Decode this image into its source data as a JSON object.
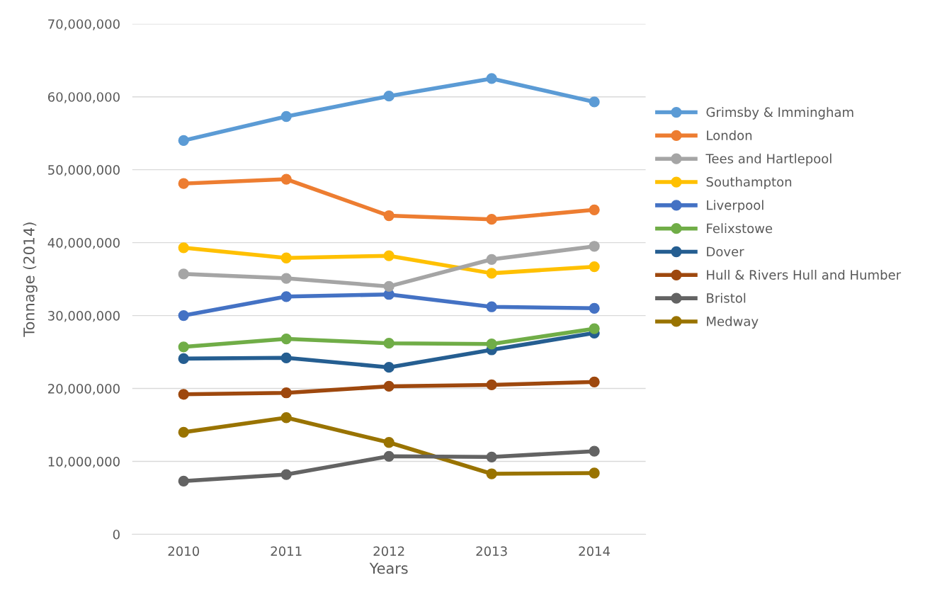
{
  "chart_data": {
    "type": "line",
    "xlabel": "Years",
    "ylabel": "Tonnage (2014)",
    "categories": [
      "2010",
      "2011",
      "2012",
      "2013",
      "2014"
    ],
    "ylim": [
      0,
      70000000
    ],
    "yticks": [
      0,
      {
        "value": 10000000,
        "label": "10,000,000"
      },
      {
        "value": 20000000,
        "label": "20,000,000"
      },
      {
        "value": 30000000,
        "label": "30,000,000"
      },
      {
        "value": 40000000,
        "label": "40,000,000"
      },
      {
        "value": 50000000,
        "label": "50,000,000"
      },
      {
        "value": 60000000,
        "label": "60,000,000"
      },
      {
        "value": 70000000,
        "label": "70,000,000"
      }
    ],
    "grid": "y",
    "legend": "right",
    "marker": "circle",
    "line_style": "solid",
    "series": [
      {
        "name": "Grimsby & Immingham",
        "color": "#5b9bd5",
        "values": [
          54000000,
          57300000,
          60100000,
          62500000,
          59300000
        ]
      },
      {
        "name": "London",
        "color": "#ed7d31",
        "values": [
          48100000,
          48700000,
          43700000,
          43200000,
          44500000
        ]
      },
      {
        "name": "Tees and Hartlepool",
        "color": "#a5a5a5",
        "values": [
          35700000,
          35100000,
          34000000,
          37700000,
          39500000
        ]
      },
      {
        "name": "Southampton",
        "color": "#ffc000",
        "values": [
          39300000,
          37900000,
          38200000,
          35800000,
          36700000
        ]
      },
      {
        "name": "Liverpool",
        "color": "#4472c4",
        "values": [
          30000000,
          32600000,
          32900000,
          31200000,
          31000000
        ]
      },
      {
        "name": "Felixstowe",
        "color": "#70ad47",
        "values": [
          25700000,
          26800000,
          26200000,
          26100000,
          28200000
        ]
      },
      {
        "name": "Dover",
        "color": "#255e91",
        "values": [
          24100000,
          24200000,
          22900000,
          25300000,
          27600000
        ]
      },
      {
        "name": "Hull & Rivers Hull and Humber",
        "color": "#9e480e",
        "values": [
          19200000,
          19400000,
          20300000,
          20500000,
          20900000
        ]
      },
      {
        "name": "Bristol",
        "color": "#636363",
        "values": [
          7300000,
          8200000,
          10700000,
          10600000,
          11400000
        ]
      },
      {
        "name": "Medway",
        "color": "#997300",
        "values": [
          14000000,
          16000000,
          12600000,
          8300000,
          8400000
        ]
      }
    ]
  }
}
